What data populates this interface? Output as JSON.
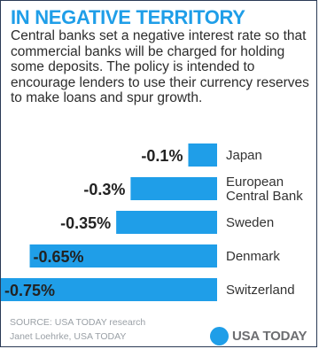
{
  "header": {
    "title": "IN NEGATIVE TERRITORY",
    "description": "Central banks set a negative interest rate so that commercial banks will be charged for holding some deposits. The policy is intended to encourage lenders to use their currency reserves to make loans and spur growth."
  },
  "chart_data": {
    "type": "bar",
    "orientation": "horizontal",
    "categories": [
      "Japan",
      "European Central Bank",
      "Sweden",
      "Denmark",
      "Switzerland"
    ],
    "category_lines": [
      [
        "Japan"
      ],
      [
        "European",
        "Central Bank"
      ],
      [
        "Sweden"
      ],
      [
        "Denmark"
      ],
      [
        "Switzerland"
      ]
    ],
    "values": [
      -0.1,
      -0.3,
      -0.35,
      -0.65,
      -0.75
    ],
    "value_labels": [
      "-0.1%",
      "-0.3%",
      "-0.35%",
      "-0.65%",
      "-0.75%"
    ],
    "unit": "%",
    "xlim": [
      -0.75,
      0
    ],
    "grid": false,
    "legend": "none",
    "colors": {
      "bar": "#1f9ee8",
      "value_label": "#222222",
      "category_label": "#333333"
    }
  },
  "footer": {
    "source": "SOURCE: USA TODAY research",
    "credit": "Janet Loehrke, USA TODAY"
  },
  "logo": {
    "text": "USA TODAY",
    "color": "#1f9ee8"
  }
}
